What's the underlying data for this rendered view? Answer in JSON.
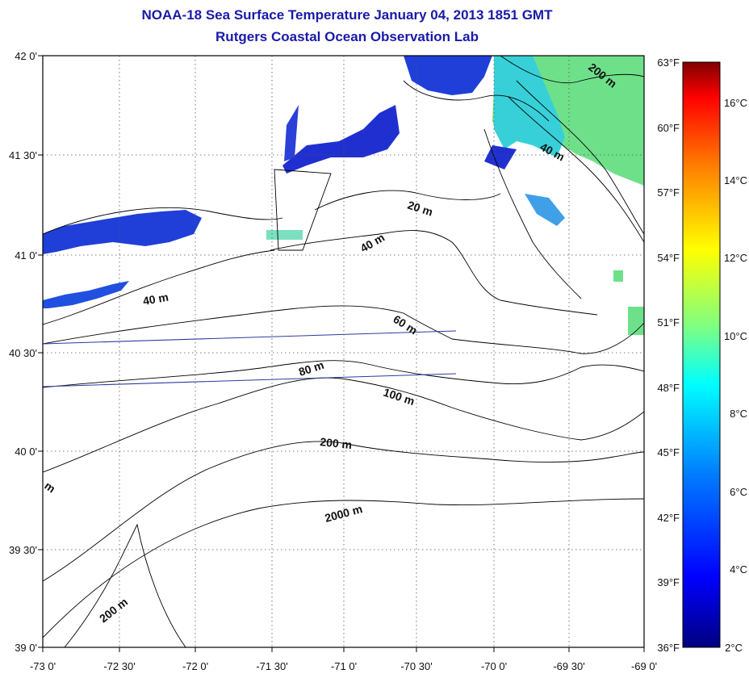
{
  "title": "NOAA-18 Sea Surface Temperature January 04, 2013 1851 GMT",
  "subtitle": "Rutgers Coastal Ocean Observation Lab",
  "lat_labels": [
    "42 0'",
    "41 30'",
    "41 0'",
    "40 30'",
    "40 0'",
    "39 30'",
    "39 0'"
  ],
  "lon_labels": [
    "-73 0'",
    "-72 30'",
    "-72 0'",
    "-71 30'",
    "-71 0'",
    "-70 30'",
    "-70 0'",
    "-69 30'",
    "-69 0'"
  ],
  "colorbar": {
    "fahrenheit_labels": [
      "63°F",
      "60°F",
      "57°F",
      "54°F",
      "51°F",
      "48°F",
      "45°F",
      "42°F",
      "39°F",
      "36°F"
    ],
    "celsius_labels": [
      "16°C",
      "14°C",
      "12°C",
      "10°C",
      "8°C",
      "6°C",
      "4°C",
      "2°C"
    ]
  },
  "contour_labels": [
    "200 m",
    "40 m",
    "20 m",
    "40 m",
    "40 m",
    "60 m",
    "80 m",
    "100 m",
    "200 m",
    "2000 m",
    "200 m",
    "m"
  ],
  "colors": {
    "title": "#1a1aa8",
    "cold": "#1a2fd6",
    "cool": "#31c6e0",
    "mild": "#58e0a8",
    "warm": "#7de07a"
  }
}
